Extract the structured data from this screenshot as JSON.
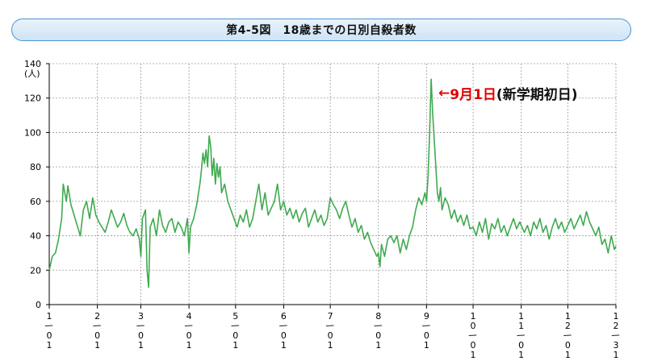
{
  "title": "第4-5図　18歳までの日別自殺者数",
  "chart_data": {
    "type": "line",
    "title": "第4-5図　18歳までの日別自殺者数",
    "ylabel_lines": [
      "140",
      "(人)"
    ],
    "ylim": [
      0,
      140
    ],
    "yticks": [
      0,
      20,
      40,
      60,
      80,
      100,
      120,
      140
    ],
    "ytick_labels": [
      "0",
      "20",
      "40",
      "60",
      "80",
      "100",
      "120",
      ""
    ],
    "xlim": [
      1,
      366
    ],
    "grid": true,
    "x_tick_days": [
      1,
      32,
      60,
      91,
      121,
      152,
      182,
      213,
      244,
      274,
      305,
      335,
      366
    ],
    "x_tick_labels": [
      [
        "1",
        "/",
        "0",
        "1"
      ],
      [
        "2",
        "/",
        "0",
        "1"
      ],
      [
        "3",
        "/",
        "0",
        "1"
      ],
      [
        "4",
        "/",
        "0",
        "1"
      ],
      [
        "5",
        "/",
        "0",
        "1"
      ],
      [
        "6",
        "/",
        "0",
        "1"
      ],
      [
        "7",
        "/",
        "0",
        "1"
      ],
      [
        "8",
        "/",
        "0",
        "1"
      ],
      [
        "9",
        "/",
        "0",
        "1"
      ],
      [
        "1",
        "0",
        "/",
        "0",
        "1"
      ],
      [
        "1",
        "1",
        "/",
        "0",
        "1"
      ],
      [
        "1",
        "2",
        "/",
        "0",
        "1"
      ],
      [
        "1",
        "2",
        "/",
        "3",
        "1"
      ]
    ],
    "series": [
      {
        "color": "#3faa4e",
        "points": [
          [
            1,
            20
          ],
          [
            3,
            28
          ],
          [
            5,
            30
          ],
          [
            7,
            38
          ],
          [
            9,
            50
          ],
          [
            10,
            70
          ],
          [
            12,
            60
          ],
          [
            13,
            69
          ],
          [
            15,
            58
          ],
          [
            17,
            52
          ],
          [
            19,
            46
          ],
          [
            21,
            40
          ],
          [
            23,
            55
          ],
          [
            25,
            60
          ],
          [
            27,
            50
          ],
          [
            29,
            62
          ],
          [
            31,
            52
          ],
          [
            33,
            48
          ],
          [
            35,
            45
          ],
          [
            37,
            42
          ],
          [
            39,
            48
          ],
          [
            41,
            55
          ],
          [
            43,
            50
          ],
          [
            45,
            45
          ],
          [
            47,
            48
          ],
          [
            49,
            53
          ],
          [
            51,
            46
          ],
          [
            53,
            42
          ],
          [
            55,
            40
          ],
          [
            57,
            44
          ],
          [
            59,
            38
          ],
          [
            60,
            28
          ],
          [
            61,
            50
          ],
          [
            63,
            55
          ],
          [
            64,
            20
          ],
          [
            65,
            10
          ],
          [
            66,
            45
          ],
          [
            68,
            50
          ],
          [
            70,
            40
          ],
          [
            72,
            55
          ],
          [
            74,
            46
          ],
          [
            76,
            42
          ],
          [
            78,
            48
          ],
          [
            80,
            50
          ],
          [
            82,
            42
          ],
          [
            84,
            48
          ],
          [
            86,
            45
          ],
          [
            88,
            40
          ],
          [
            90,
            50
          ],
          [
            91,
            30
          ],
          [
            92,
            45
          ],
          [
            94,
            50
          ],
          [
            96,
            58
          ],
          [
            98,
            70
          ],
          [
            99,
            78
          ],
          [
            100,
            88
          ],
          [
            101,
            82
          ],
          [
            102,
            90
          ],
          [
            103,
            80
          ],
          [
            104,
            98
          ],
          [
            105,
            92
          ],
          [
            106,
            75
          ],
          [
            107,
            85
          ],
          [
            108,
            70
          ],
          [
            109,
            82
          ],
          [
            110,
            74
          ],
          [
            111,
            80
          ],
          [
            112,
            65
          ],
          [
            114,
            70
          ],
          [
            116,
            60
          ],
          [
            118,
            55
          ],
          [
            120,
            50
          ],
          [
            122,
            45
          ],
          [
            124,
            52
          ],
          [
            126,
            48
          ],
          [
            128,
            55
          ],
          [
            130,
            45
          ],
          [
            132,
            50
          ],
          [
            134,
            60
          ],
          [
            136,
            70
          ],
          [
            138,
            55
          ],
          [
            140,
            65
          ],
          [
            142,
            52
          ],
          [
            144,
            56
          ],
          [
            146,
            60
          ],
          [
            148,
            70
          ],
          [
            150,
            55
          ],
          [
            152,
            60
          ],
          [
            154,
            52
          ],
          [
            156,
            56
          ],
          [
            158,
            50
          ],
          [
            160,
            55
          ],
          [
            162,
            48
          ],
          [
            164,
            53
          ],
          [
            166,
            56
          ],
          [
            168,
            45
          ],
          [
            170,
            50
          ],
          [
            172,
            55
          ],
          [
            174,
            48
          ],
          [
            176,
            52
          ],
          [
            178,
            46
          ],
          [
            180,
            50
          ],
          [
            182,
            62
          ],
          [
            184,
            58
          ],
          [
            186,
            55
          ],
          [
            188,
            50
          ],
          [
            190,
            56
          ],
          [
            192,
            60
          ],
          [
            194,
            52
          ],
          [
            196,
            45
          ],
          [
            198,
            50
          ],
          [
            200,
            42
          ],
          [
            202,
            46
          ],
          [
            204,
            38
          ],
          [
            206,
            42
          ],
          [
            208,
            36
          ],
          [
            210,
            32
          ],
          [
            212,
            28
          ],
          [
            213,
            30
          ],
          [
            214,
            22
          ],
          [
            215,
            35
          ],
          [
            217,
            28
          ],
          [
            219,
            38
          ],
          [
            221,
            40
          ],
          [
            223,
            36
          ],
          [
            225,
            40
          ],
          [
            227,
            30
          ],
          [
            229,
            38
          ],
          [
            231,
            32
          ],
          [
            233,
            40
          ],
          [
            235,
            45
          ],
          [
            237,
            55
          ],
          [
            239,
            62
          ],
          [
            241,
            58
          ],
          [
            243,
            65
          ],
          [
            244,
            60
          ],
          [
            245,
            75
          ],
          [
            246,
            100
          ],
          [
            247,
            131
          ],
          [
            248,
            110
          ],
          [
            249,
            95
          ],
          [
            250,
            80
          ],
          [
            251,
            65
          ],
          [
            252,
            60
          ],
          [
            253,
            68
          ],
          [
            254,
            55
          ],
          [
            256,
            62
          ],
          [
            258,
            58
          ],
          [
            260,
            50
          ],
          [
            262,
            55
          ],
          [
            264,
            48
          ],
          [
            266,
            52
          ],
          [
            268,
            46
          ],
          [
            270,
            52
          ],
          [
            272,
            44
          ],
          [
            274,
            45
          ],
          [
            276,
            40
          ],
          [
            278,
            48
          ],
          [
            280,
            42
          ],
          [
            282,
            50
          ],
          [
            284,
            38
          ],
          [
            286,
            47
          ],
          [
            288,
            44
          ],
          [
            290,
            50
          ],
          [
            292,
            42
          ],
          [
            294,
            46
          ],
          [
            296,
            40
          ],
          [
            298,
            45
          ],
          [
            300,
            50
          ],
          [
            302,
            44
          ],
          [
            304,
            48
          ],
          [
            305,
            46
          ],
          [
            307,
            42
          ],
          [
            309,
            46
          ],
          [
            311,
            40
          ],
          [
            313,
            48
          ],
          [
            315,
            44
          ],
          [
            317,
            50
          ],
          [
            319,
            42
          ],
          [
            321,
            46
          ],
          [
            323,
            38
          ],
          [
            325,
            45
          ],
          [
            327,
            50
          ],
          [
            329,
            44
          ],
          [
            331,
            48
          ],
          [
            333,
            42
          ],
          [
            335,
            46
          ],
          [
            337,
            50
          ],
          [
            339,
            44
          ],
          [
            341,
            48
          ],
          [
            343,
            52
          ],
          [
            345,
            46
          ],
          [
            347,
            54
          ],
          [
            349,
            48
          ],
          [
            351,
            44
          ],
          [
            353,
            40
          ],
          [
            355,
            45
          ],
          [
            357,
            35
          ],
          [
            359,
            38
          ],
          [
            361,
            30
          ],
          [
            363,
            40
          ],
          [
            365,
            32
          ],
          [
            366,
            34
          ]
        ]
      }
    ],
    "annotation": {
      "arrow": "←",
      "date_text": "9月1日",
      "note_text": "(新学期初日)",
      "date_color": "#e00000",
      "note_color": "#111111",
      "target": [
        247,
        131
      ]
    },
    "colors": {
      "frame": "#4c93d0",
      "grid": "#9a9a9a",
      "axis": "#000000"
    }
  }
}
